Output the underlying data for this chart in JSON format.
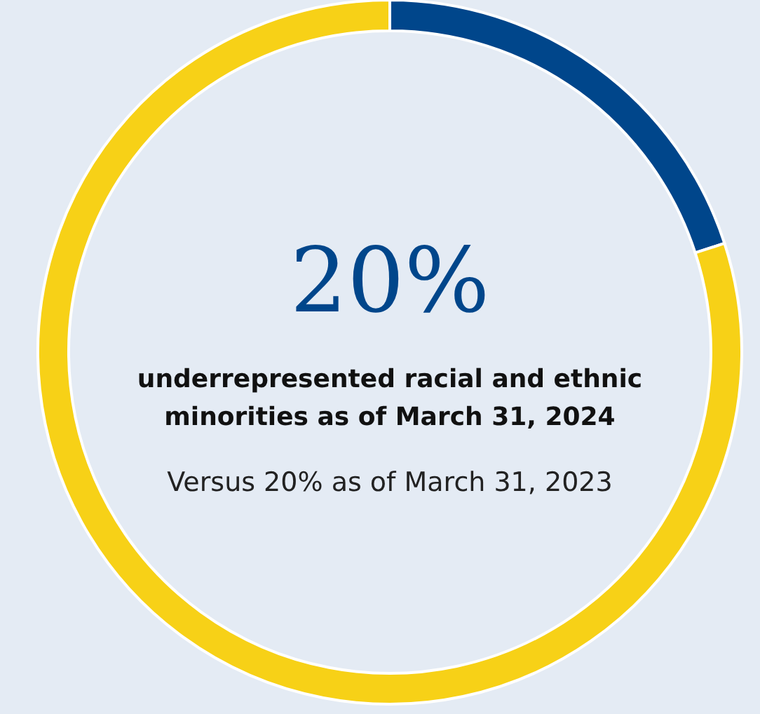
{
  "chart_data": {
    "type": "donut",
    "title": "20%",
    "subtitle": "underrepresented racial and ethnic minorities as of March 31, 2024",
    "annotations": [
      "Versus 20% as of March 31, 2023"
    ],
    "categories": [
      null,
      null
    ],
    "values": [
      20,
      80
    ],
    "colors": [
      "#00468b",
      "#f7d117"
    ]
  }
}
